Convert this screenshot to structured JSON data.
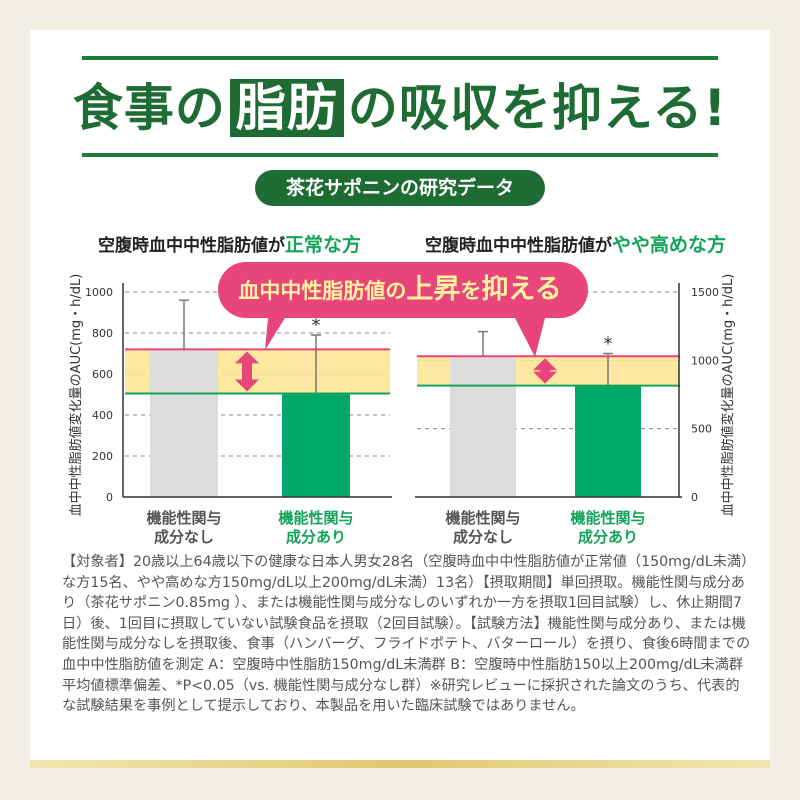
{
  "title": {
    "pre": "食事の",
    "boxed": "脂肪",
    "post": "の吸収を抑える!"
  },
  "badge": "茶花サポニンの研究データ",
  "callout": {
    "pre": "血中中性脂肪値の",
    "big1": "上昇",
    "mid": "を",
    "big2": "抑える"
  },
  "colors": {
    "green": "#00a86b",
    "gray": "#dcdcdc",
    "pink": "#e8457a",
    "band": "#fbe48f",
    "dark_green": "#1f6b34"
  },
  "chart_data": [
    {
      "type": "bar",
      "title_pre": "空腹時血中中性脂肪値が",
      "title_hl": "正常な方",
      "ylabel": "血中中性脂肪値変化量のAUC",
      "yunit": "(mg・h/dL)",
      "ylim": [
        0,
        1000
      ],
      "yticks": [
        0,
        200,
        400,
        600,
        800,
        1000
      ],
      "categories": [
        [
          "機能性関与",
          "成分なし"
        ],
        [
          "機能性関与",
          "成分あり"
        ]
      ],
      "values": [
        720,
        505
      ],
      "error_upper": [
        960,
        790
      ],
      "significance": [
        "",
        "*"
      ]
    },
    {
      "type": "bar",
      "title_pre": "空腹時血中中性脂肪値が",
      "title_hl": "やや高めな方",
      "ylabel": "血中中性脂肪値変化量のAUC",
      "yunit": "(mg・h/dL)",
      "ylim": [
        0,
        1500
      ],
      "yticks": [
        0,
        500,
        1000,
        1500
      ],
      "categories": [
        [
          "機能性関与",
          "成分なし"
        ],
        [
          "機能性関与",
          "成分あり"
        ]
      ],
      "values": [
        1030,
        815
      ],
      "error_upper": [
        1210,
        1050
      ],
      "significance": [
        "",
        "*"
      ]
    }
  ],
  "note": "【対象者】20歳以上64歳以下の健康な日本人男女28名（空腹時血中中性脂肪値が正常値（150mg/dL未満）な方15名、やや高めな方150mg/dL以上200mg/dL未満）13名）【摂取期間】単回摂取。機能性関与成分あり（茶花サポニン0.85mg ）、または機能性関与成分なしのいずれか一方を摂取1回目試験）し、休止期間7日）後、1回目に摂取していない試験食品を摂取（2回目試験）。【試験方法】機能性関与成分あり、または機能性関与成分なしを摂取後、食事（ハンバーグ、フライドポテト、バターロール）を摂り、食後6時間までの血中中性脂肪値を測定 A：空腹時中性脂肪150mg/dL未満群 B：空腹時中性脂肪150以上200mg/dL未満群平均値標準偏差、*P<0.05（vs. 機能性関与成分なし群）※研究レビューに採択された論文のうち、代表的な試験結果を事例として提示しており、本製品を用いた臨床試験ではありません。"
}
